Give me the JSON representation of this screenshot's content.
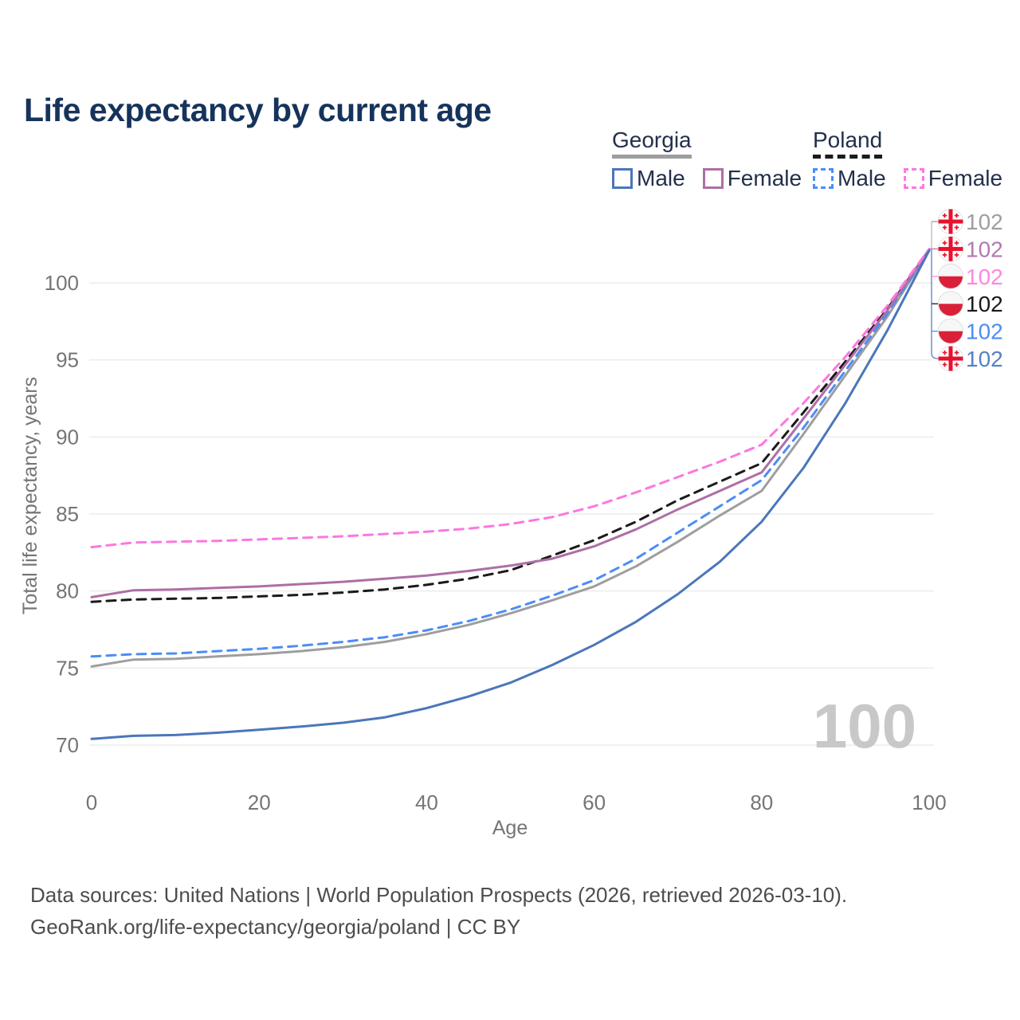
{
  "title": "Life expectancy by current age",
  "legend": {
    "groups": [
      {
        "label": "Georgia",
        "underline_color": "#9e9e9e",
        "underline_style": "solid",
        "items": [
          {
            "label": "Male",
            "swatch_color": "#4b76ba",
            "swatch_style": "solid"
          },
          {
            "label": "Female",
            "swatch_color": "#ad6fa6",
            "swatch_style": "solid"
          }
        ]
      },
      {
        "label": "Poland",
        "underline_color": "#1b1b1b",
        "underline_style": "dashed",
        "items": [
          {
            "label": "Male",
            "swatch_color": "#4d8cf7",
            "swatch_style": "dashed"
          },
          {
            "label": "Female",
            "swatch_color": "#fc77e0",
            "swatch_style": "dashed"
          }
        ]
      }
    ]
  },
  "watermark": "100",
  "chart_data": {
    "type": "line",
    "title": "Life expectancy by current age",
    "xlabel": "Age",
    "ylabel": "Total life expectancy, years",
    "x_ticks": [
      0,
      20,
      40,
      60,
      80,
      100
    ],
    "y_ticks": [
      70,
      75,
      80,
      85,
      90,
      95,
      100
    ],
    "xlim": [
      0,
      100
    ],
    "ylim": [
      69,
      103
    ],
    "grid": "horizontal-only",
    "legend_position": "top-right",
    "ages": [
      0,
      5,
      10,
      15,
      20,
      25,
      30,
      35,
      40,
      45,
      50,
      55,
      60,
      65,
      70,
      75,
      80,
      85,
      90,
      95,
      100
    ],
    "series": [
      {
        "id": "georgia-all",
        "name": "Georgia — All",
        "country": "Georgia",
        "sex": "All",
        "color": "#9e9e9e",
        "dashed": false,
        "values": [
          75.1,
          75.55,
          75.6,
          75.75,
          75.9,
          76.1,
          76.35,
          76.7,
          77.2,
          77.8,
          78.55,
          79.4,
          80.3,
          81.6,
          83.2,
          84.9,
          86.5,
          90.2,
          94.0,
          97.8,
          102.1
        ]
      },
      {
        "id": "poland-male",
        "name": "Poland — Male",
        "country": "Poland",
        "sex": "Male",
        "color": "#4d8cf7",
        "dashed": true,
        "values": [
          75.75,
          75.9,
          75.95,
          76.1,
          76.25,
          76.45,
          76.7,
          77.0,
          77.45,
          78.05,
          78.8,
          79.7,
          80.7,
          82.1,
          83.8,
          85.5,
          87.2,
          90.6,
          94.3,
          98.0,
          102.1
        ]
      },
      {
        "id": "poland-all",
        "name": "Poland — All",
        "country": "Poland",
        "sex": "All",
        "color": "#1a1a1a",
        "dashed": true,
        "values": [
          79.3,
          79.45,
          79.5,
          79.55,
          79.65,
          79.75,
          79.9,
          80.1,
          80.4,
          80.8,
          81.35,
          82.3,
          83.3,
          84.5,
          85.9,
          87.1,
          88.3,
          91.6,
          94.9,
          98.3,
          102.15
        ]
      },
      {
        "id": "georgia-female",
        "name": "Georgia — Female",
        "country": "Georgia",
        "sex": "Female",
        "color": "#ad6fa6",
        "dashed": false,
        "values": [
          79.6,
          80.05,
          80.1,
          80.2,
          80.3,
          80.45,
          80.6,
          80.8,
          81.0,
          81.3,
          81.65,
          82.1,
          82.9,
          84.0,
          85.3,
          86.5,
          87.7,
          91.2,
          94.7,
          98.2,
          102.15
        ]
      },
      {
        "id": "poland-female",
        "name": "Poland — Female",
        "country": "Poland",
        "sex": "Female",
        "color": "#fc77e0",
        "dashed": true,
        "values": [
          82.85,
          83.15,
          83.2,
          83.25,
          83.35,
          83.45,
          83.55,
          83.7,
          83.85,
          84.05,
          84.35,
          84.8,
          85.5,
          86.4,
          87.4,
          88.4,
          89.5,
          92.2,
          95.2,
          98.5,
          102.2
        ]
      },
      {
        "id": "georgia-male",
        "name": "Georgia — Male",
        "country": "Georgia",
        "sex": "Male",
        "color": "#4b76ba",
        "dashed": false,
        "values": [
          70.4,
          70.6,
          70.65,
          70.8,
          71.0,
          71.2,
          71.45,
          71.8,
          72.4,
          73.15,
          74.05,
          75.2,
          76.5,
          78.0,
          79.8,
          81.9,
          84.5,
          88.0,
          92.2,
          96.9,
          102.1
        ]
      }
    ],
    "end_labels": [
      {
        "series_id": "georgia-all",
        "flag": "georgia",
        "text": "102",
        "color": "#9e9e9e"
      },
      {
        "series_id": "georgia-female",
        "flag": "georgia",
        "text": "102",
        "color": "#b478b3"
      },
      {
        "series_id": "poland-female",
        "flag": "poland",
        "text": "102",
        "color": "#ff85e2"
      },
      {
        "series_id": "poland-all",
        "flag": "poland",
        "text": "102",
        "color": "#1a1a1a"
      },
      {
        "series_id": "poland-male",
        "flag": "poland",
        "text": "102",
        "color": "#4d8cf7"
      },
      {
        "series_id": "georgia-male",
        "flag": "georgia",
        "text": "102",
        "color": "#5581c5"
      }
    ],
    "flag_colors": {
      "red": "#e8112d",
      "poland_red": "#d92038",
      "flag_white": "#f7f7f7"
    }
  },
  "footer": {
    "line1": "Data sources: United Nations | World Population Prospects (2026, retrieved 2026-03-10).",
    "line2": "GeoRank.org/life-expectancy/georgia/poland | CC BY"
  }
}
